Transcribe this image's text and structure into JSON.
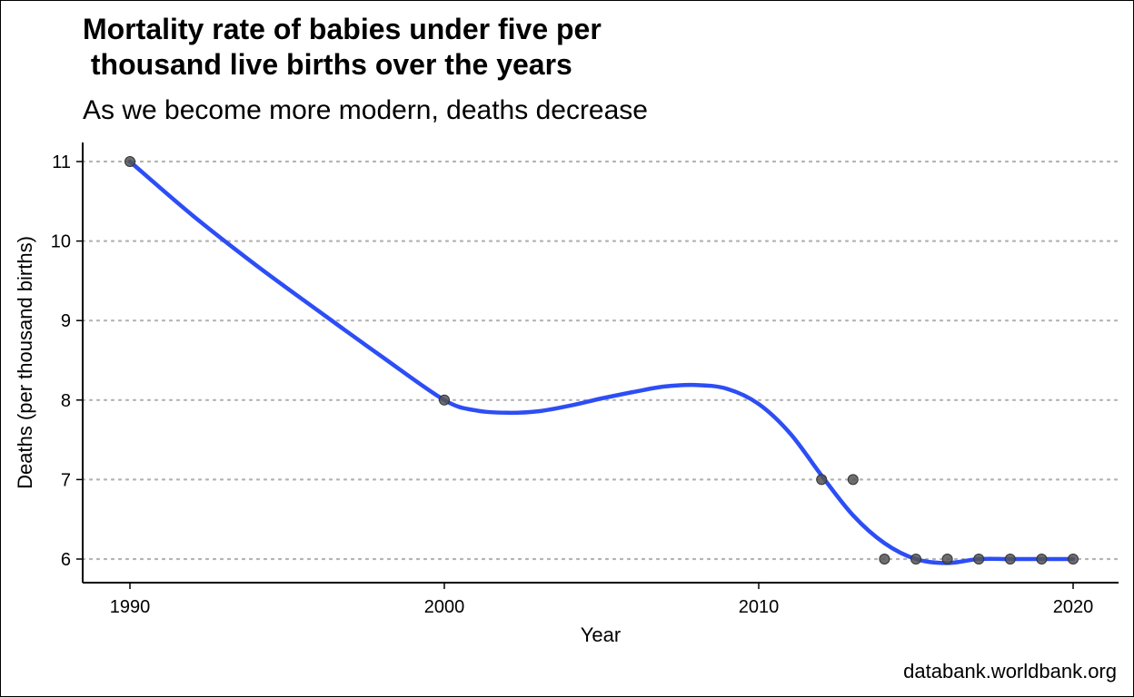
{
  "chart": {
    "title": "Mortality rate of babies under five per\n thousand live births over the years",
    "subtitle": "As we become more modern, deaths decrease",
    "caption": "databank.worldbank.org"
  },
  "colors": {
    "line": "#2d4ef5",
    "point": "#555555",
    "grid": "#b3b3b3",
    "axis": "#000000"
  },
  "chart_data": {
    "type": "scatter",
    "title": "Mortality rate of babies under five per\n thousand live births over the years",
    "subtitle": "As we become more modern, deaths decrease",
    "xlabel": "Year",
    "ylabel": "Deaths (per thousand births)",
    "xlim": [
      1988.5,
      2021.5
    ],
    "ylim": [
      5.7,
      11.25
    ],
    "x_ticks": [
      1990,
      2000,
      2010,
      2020
    ],
    "y_ticks": [
      6,
      7,
      8,
      9,
      10,
      11
    ],
    "grid": "horizontal dotted",
    "series": [
      {
        "kind": "points",
        "x": [
          1990,
          2000,
          2012,
          2013,
          2014,
          2015,
          2016,
          2017,
          2018,
          2019,
          2020
        ],
        "y": [
          11,
          8,
          7,
          7,
          6,
          6,
          6,
          6,
          6,
          6,
          6
        ]
      },
      {
        "kind": "smooth-line",
        "x": [
          1990,
          1992,
          1994,
          1996,
          1998,
          2000,
          2001,
          2002,
          2003,
          2004,
          2005,
          2006,
          2007,
          2008,
          2009,
          2010,
          2011,
          2012,
          2013,
          2014,
          2015,
          2016,
          2017,
          2018,
          2019,
          2020
        ],
        "y": [
          11.0,
          10.32,
          9.7,
          9.12,
          8.55,
          8.0,
          7.87,
          7.84,
          7.86,
          7.93,
          8.02,
          8.1,
          8.17,
          8.19,
          8.14,
          7.95,
          7.58,
          7.05,
          6.55,
          6.2,
          6.0,
          5.95,
          6.0,
          6.0,
          6.0,
          6.0
        ]
      }
    ]
  }
}
